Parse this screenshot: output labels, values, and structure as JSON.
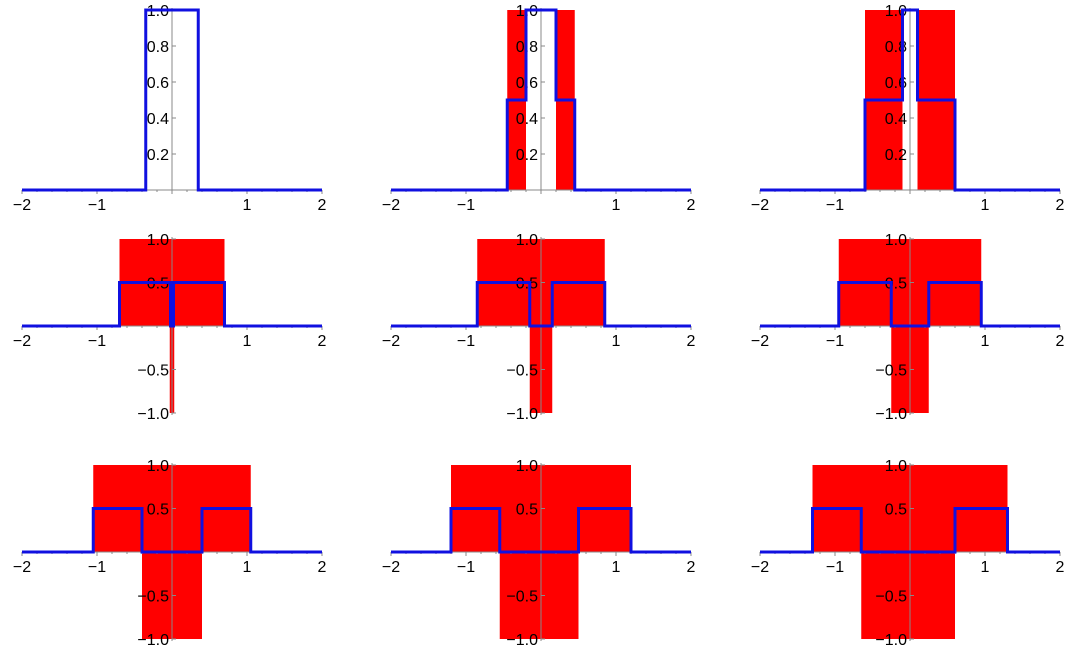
{
  "colors": {
    "line": "#1010e0",
    "fill": "#ff0000",
    "axis": "#888888",
    "text": "#000000"
  },
  "chart_data": [
    {
      "type": "area",
      "title": "",
      "xlim": [
        -2,
        2
      ],
      "ylim": [
        0,
        1
      ],
      "x_ticks": [
        "−2",
        "−1",
        "1",
        "2"
      ],
      "y_ticks": [
        "0.2",
        "0.4",
        "0.6",
        "0.8",
        "1.0"
      ],
      "series": [
        {
          "style": "line",
          "x": [
            -2,
            -0.35,
            -0.35,
            0.35,
            0.35,
            2
          ],
          "y": [
            0,
            0,
            1,
            1,
            0,
            0
          ]
        }
      ]
    },
    {
      "type": "area",
      "title": "",
      "xlim": [
        -2,
        2
      ],
      "ylim": [
        0,
        1
      ],
      "x_ticks": [
        "−2",
        "−1",
        "1",
        "2"
      ],
      "y_ticks": [
        "0.2",
        "0.4",
        "0.6",
        "0.8",
        "1.0"
      ],
      "series": [
        {
          "style": "fill",
          "x": [
            -0.45,
            -0.45,
            -0.2,
            -0.2
          ],
          "y": [
            0,
            1,
            1,
            0
          ]
        },
        {
          "style": "fill",
          "x": [
            0.2,
            0.2,
            0.45,
            0.45
          ],
          "y": [
            0,
            1,
            1,
            0
          ]
        },
        {
          "style": "line",
          "x": [
            -2,
            -0.45,
            -0.45,
            -0.2,
            -0.2,
            0.2,
            0.2,
            0.45,
            0.45,
            2
          ],
          "y": [
            0,
            0,
            0.5,
            0.5,
            1,
            1,
            0.5,
            0.5,
            0,
            0
          ]
        }
      ]
    },
    {
      "type": "area",
      "title": "",
      "xlim": [
        -2,
        2
      ],
      "ylim": [
        0,
        1
      ],
      "x_ticks": [
        "−2",
        "−1",
        "1",
        "2"
      ],
      "y_ticks": [
        "0.2",
        "0.4",
        "0.6",
        "0.8",
        "1.0"
      ],
      "series": [
        {
          "style": "fill",
          "x": [
            -0.6,
            -0.6,
            -0.1,
            -0.1
          ],
          "y": [
            0,
            1,
            1,
            0
          ]
        },
        {
          "style": "fill",
          "x": [
            0.1,
            0.1,
            0.6,
            0.6
          ],
          "y": [
            0,
            1,
            1,
            0
          ]
        },
        {
          "style": "line",
          "x": [
            -2,
            -0.6,
            -0.6,
            -0.1,
            -0.1,
            0.1,
            0.1,
            0.6,
            0.6,
            2
          ],
          "y": [
            0,
            0,
            0.5,
            0.5,
            1,
            1,
            0.5,
            0.5,
            0,
            0
          ]
        }
      ]
    },
    {
      "type": "area",
      "title": "",
      "xlim": [
        -2,
        2
      ],
      "ylim": [
        -1,
        1
      ],
      "x_ticks": [
        "−2",
        "−1",
        "1",
        "2"
      ],
      "y_ticks": [
        "−1.0",
        "−0.5",
        "0.5",
        "1.0"
      ],
      "series": [
        {
          "style": "fill",
          "x": [
            -0.7,
            -0.7,
            0.7,
            0.7
          ],
          "y": [
            0,
            1,
            1,
            0
          ]
        },
        {
          "style": "fill",
          "x": [
            -0.03,
            -0.03,
            0.03,
            0.03
          ],
          "y": [
            0,
            -1,
            -1,
            0
          ]
        },
        {
          "style": "line",
          "x": [
            -2,
            -0.7,
            -0.7,
            -0.02,
            -0.02,
            0.02,
            0.02,
            0.7,
            0.7,
            2
          ],
          "y": [
            0,
            0,
            0.5,
            0.5,
            0,
            0,
            0.5,
            0.5,
            0,
            0
          ]
        }
      ]
    },
    {
      "type": "area",
      "title": "",
      "xlim": [
        -2,
        2
      ],
      "ylim": [
        -1,
        1
      ],
      "x_ticks": [
        "−2",
        "−1",
        "1",
        "2"
      ],
      "y_ticks": [
        "−1.0",
        "−0.5",
        "0.5",
        "1.0"
      ],
      "series": [
        {
          "style": "fill",
          "x": [
            -0.85,
            -0.85,
            0.85,
            0.85
          ],
          "y": [
            0,
            1,
            1,
            0
          ]
        },
        {
          "style": "fill",
          "x": [
            -0.15,
            -0.15,
            0.15,
            0.15
          ],
          "y": [
            0,
            -1,
            -1,
            0
          ]
        },
        {
          "style": "line",
          "x": [
            -2,
            -0.85,
            -0.85,
            -0.15,
            -0.15,
            0.15,
            0.15,
            0.85,
            0.85,
            2
          ],
          "y": [
            0,
            0,
            0.5,
            0.5,
            0,
            0,
            0.5,
            0.5,
            0,
            0
          ]
        }
      ]
    },
    {
      "type": "area",
      "title": "",
      "xlim": [
        -2,
        2
      ],
      "ylim": [
        -1,
        1
      ],
      "x_ticks": [
        "−2",
        "−1",
        "1",
        "2"
      ],
      "y_ticks": [
        "−1.0",
        "−0.5",
        "0.5",
        "1.0"
      ],
      "series": [
        {
          "style": "fill",
          "x": [
            -0.95,
            -0.95,
            0.95,
            0.95
          ],
          "y": [
            0,
            1,
            1,
            0
          ]
        },
        {
          "style": "fill",
          "x": [
            -0.25,
            -0.25,
            0.25,
            0.25
          ],
          "y": [
            0,
            -1,
            -1,
            0
          ]
        },
        {
          "style": "line",
          "x": [
            -2,
            -0.95,
            -0.95,
            -0.25,
            -0.25,
            0.25,
            0.25,
            0.95,
            0.95,
            2
          ],
          "y": [
            0,
            0,
            0.5,
            0.5,
            0,
            0,
            0.5,
            0.5,
            0,
            0
          ]
        }
      ]
    },
    {
      "type": "area",
      "title": "",
      "xlim": [
        -2,
        2
      ],
      "ylim": [
        -1,
        1
      ],
      "x_ticks": [
        "−2",
        "−1",
        "1",
        "2"
      ],
      "y_ticks": [
        "−1.0",
        "−0.5",
        "0.5",
        "1.0"
      ],
      "series": [
        {
          "style": "fill",
          "x": [
            -1.05,
            -1.05,
            1.05,
            1.05
          ],
          "y": [
            0,
            1,
            1,
            0
          ]
        },
        {
          "style": "fill",
          "x": [
            -0.4,
            -0.4,
            0.4,
            0.4
          ],
          "y": [
            0,
            -1,
            -1,
            0
          ]
        },
        {
          "style": "line",
          "x": [
            -2,
            -1.05,
            -1.05,
            -0.4,
            -0.4,
            0.4,
            0.4,
            1.05,
            1.05,
            2
          ],
          "y": [
            0,
            0,
            0.5,
            0.5,
            0,
            0,
            0.5,
            0.5,
            0,
            0
          ]
        }
      ]
    },
    {
      "type": "area",
      "title": "",
      "xlim": [
        -2,
        2
      ],
      "ylim": [
        -1,
        1
      ],
      "x_ticks": [
        "−2",
        "−1",
        "1",
        "2"
      ],
      "y_ticks": [
        "−1.0",
        "−0.5",
        "0.5",
        "1.0"
      ],
      "series": [
        {
          "style": "fill",
          "x": [
            -1.2,
            -1.2,
            1.2,
            1.2
          ],
          "y": [
            0,
            1,
            1,
            0
          ]
        },
        {
          "style": "fill",
          "x": [
            -0.55,
            -0.55,
            0.5,
            0.5
          ],
          "y": [
            0,
            -1,
            -1,
            0
          ]
        },
        {
          "style": "line",
          "x": [
            -2,
            -1.2,
            -1.2,
            -0.55,
            -0.55,
            0.5,
            0.5,
            1.2,
            1.2,
            2
          ],
          "y": [
            0,
            0,
            0.5,
            0.5,
            0,
            0,
            0.5,
            0.5,
            0,
            0
          ]
        }
      ]
    },
    {
      "type": "area",
      "title": "",
      "xlim": [
        -2,
        2
      ],
      "ylim": [
        -1,
        1
      ],
      "x_ticks": [
        "−2",
        "−1",
        "1",
        "2"
      ],
      "y_ticks": [
        "−1.0",
        "−0.5",
        "0.5",
        "1.0"
      ],
      "series": [
        {
          "style": "fill",
          "x": [
            -1.3,
            -1.3,
            1.3,
            1.3
          ],
          "y": [
            0,
            1,
            1,
            0
          ]
        },
        {
          "style": "fill",
          "x": [
            -0.65,
            -0.65,
            0.6,
            0.6
          ],
          "y": [
            0,
            -1,
            -1,
            0
          ]
        },
        {
          "style": "line",
          "x": [
            -2,
            -1.3,
            -1.3,
            -0.65,
            -0.65,
            0.6,
            0.6,
            1.3,
            1.3,
            2
          ],
          "y": [
            0,
            0,
            0.5,
            0.5,
            0,
            0,
            0.5,
            0.5,
            0,
            0
          ]
        }
      ]
    }
  ]
}
